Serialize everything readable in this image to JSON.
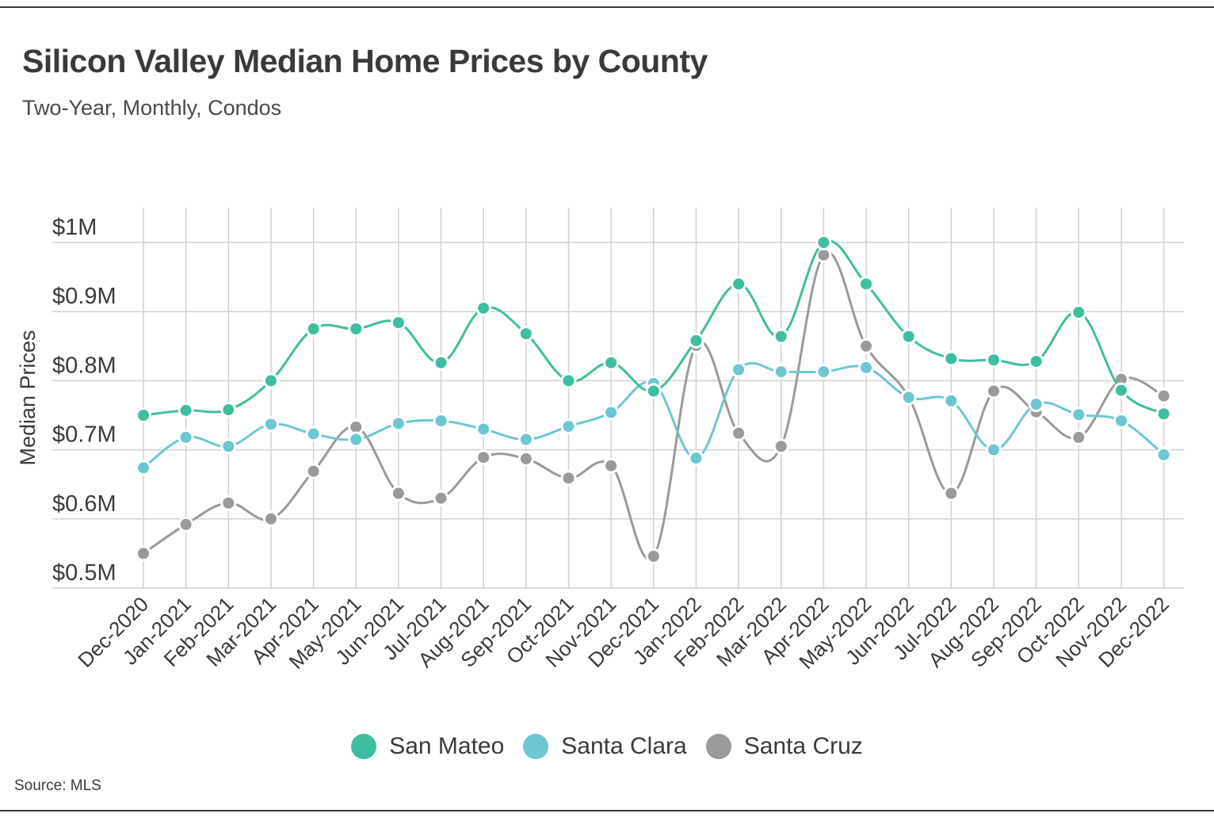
{
  "header": {
    "title": "Silicon Valley Median Home Prices by County",
    "subtitle": "Two-Year, Monthly, Condos"
  },
  "footer": {
    "source": "Source: MLS"
  },
  "legend": [
    {
      "label": "San Mateo",
      "color": "#3dbf9f"
    },
    {
      "label": "Santa Clara",
      "color": "#6cc7d2"
    },
    {
      "label": "Santa Cruz",
      "color": "#9a9a9a"
    }
  ],
  "chart_data": {
    "type": "line",
    "ylabel": "Median Prices",
    "xlabel": "",
    "ylim": [
      0.5,
      1.0
    ],
    "grid": true,
    "legend_position": "bottom",
    "y_ticks": [
      {
        "value": 1.0,
        "label": "$1M"
      },
      {
        "value": 0.9,
        "label": "$0.9M"
      },
      {
        "value": 0.8,
        "label": "$0.8M"
      },
      {
        "value": 0.7,
        "label": "$0.7M"
      },
      {
        "value": 0.6,
        "label": "$0.6M"
      },
      {
        "value": 0.5,
        "label": "$0.5M"
      }
    ],
    "categories": [
      "Dec-2020",
      "Jan-2021",
      "Feb-2021",
      "Mar-2021",
      "Apr-2021",
      "May-2021",
      "Jun-2021",
      "Jul-2021",
      "Aug-2021",
      "Sep-2021",
      "Oct-2021",
      "Nov-2021",
      "Dec-2021",
      "Jan-2022",
      "Feb-2022",
      "Mar-2022",
      "Apr-2022",
      "May-2022",
      "Jun-2022",
      "Jul-2022",
      "Aug-2022",
      "Sep-2022",
      "Oct-2022",
      "Nov-2022",
      "Dec-2022"
    ],
    "series": [
      {
        "name": "San Mateo",
        "color": "#3dbf9f",
        "values": [
          0.75,
          0.757,
          0.758,
          0.8,
          0.875,
          0.875,
          0.884,
          0.826,
          0.905,
          0.868,
          0.8,
          0.826,
          0.785,
          0.858,
          0.94,
          0.864,
          1.0,
          0.94,
          0.864,
          0.832,
          0.83,
          0.828,
          0.899,
          0.786,
          0.752
        ]
      },
      {
        "name": "Santa Clara",
        "color": "#6cc7d2",
        "values": [
          0.674,
          0.718,
          0.705,
          0.737,
          0.723,
          0.715,
          0.738,
          0.742,
          0.73,
          0.715,
          0.734,
          0.754,
          0.796,
          0.688,
          0.816,
          0.813,
          0.813,
          0.819,
          0.776,
          0.771,
          0.7,
          0.766,
          0.751,
          0.742,
          0.693
        ]
      },
      {
        "name": "Santa Cruz",
        "color": "#9a9a9a",
        "values": [
          0.55,
          0.592,
          0.623,
          0.6,
          0.669,
          0.733,
          0.637,
          0.63,
          0.689,
          0.687,
          0.659,
          0.677,
          0.546,
          0.851,
          0.724,
          0.705,
          0.982,
          0.85,
          0.776,
          0.637,
          0.785,
          0.755,
          0.718,
          0.802,
          0.778
        ]
      }
    ]
  }
}
